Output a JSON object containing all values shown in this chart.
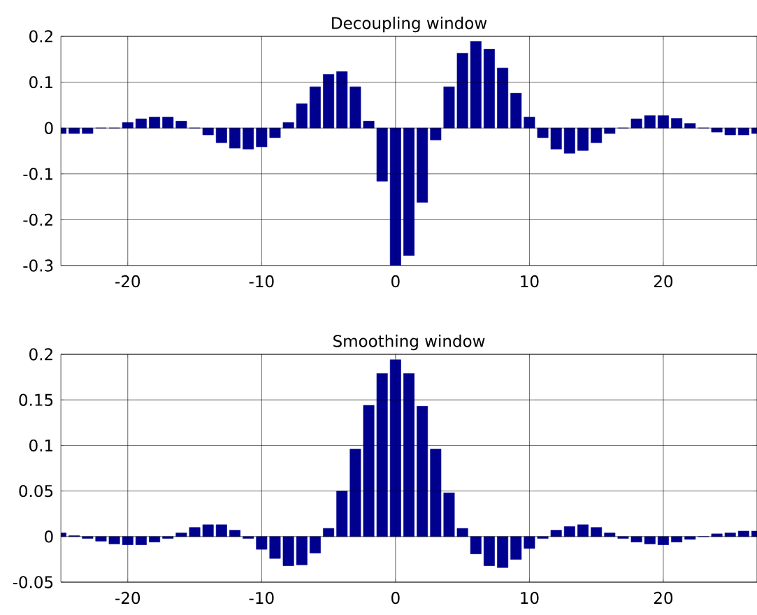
{
  "chart_data": [
    {
      "type": "bar",
      "title": "Decoupling window",
      "x": [
        -25,
        -24,
        -23,
        -22,
        -21,
        -20,
        -19,
        -18,
        -17,
        -16,
        -15,
        -14,
        -13,
        -12,
        -11,
        -10,
        -9,
        -8,
        -7,
        -6,
        -5,
        -4,
        -3,
        -2,
        -1,
        0,
        1,
        2,
        3,
        4,
        5,
        6,
        7,
        8,
        9,
        10,
        11,
        12,
        13,
        14,
        15,
        16,
        17,
        18,
        19,
        20,
        21,
        22,
        23,
        24,
        25,
        26,
        27
      ],
      "values": [
        -0.012,
        -0.012,
        -0.012,
        0,
        0,
        0.012,
        0.02,
        0.024,
        0.024,
        0.015,
        0,
        -0.015,
        -0.032,
        -0.044,
        -0.046,
        -0.041,
        -0.021,
        0.012,
        0.053,
        0.09,
        0.117,
        0.123,
        0.09,
        0.015,
        -0.116,
        -0.3,
        -0.278,
        -0.162,
        -0.026,
        0.09,
        0.163,
        0.189,
        0.172,
        0.131,
        0.076,
        0.024,
        -0.021,
        -0.046,
        -0.055,
        -0.049,
        -0.032,
        -0.012,
        0,
        0.02,
        0.027,
        0.027,
        0.021,
        0.01,
        0,
        -0.009,
        -0.015,
        -0.015,
        -0.012
      ],
      "color": "#00008f",
      "xlim": [
        -25,
        27
      ],
      "ylim": [
        -0.3,
        0.2
      ],
      "xticks": [
        -20,
        -10,
        0,
        10,
        20
      ],
      "yticks": [
        -0.3,
        -0.2,
        -0.1,
        0,
        0.1,
        0.2
      ],
      "grid": true
    },
    {
      "type": "bar",
      "title": "Smoothing window",
      "x": [
        -25,
        -24,
        -23,
        -22,
        -21,
        -20,
        -19,
        -18,
        -17,
        -16,
        -15,
        -14,
        -13,
        -12,
        -11,
        -10,
        -9,
        -8,
        -7,
        -6,
        -5,
        -4,
        -3,
        -2,
        -1,
        0,
        1,
        2,
        3,
        4,
        5,
        6,
        7,
        8,
        9,
        10,
        11,
        12,
        13,
        14,
        15,
        16,
        17,
        18,
        19,
        20,
        21,
        22,
        23,
        24,
        25,
        26,
        27
      ],
      "values": [
        0.004,
        0.001,
        -0.002,
        -0.005,
        -0.008,
        -0.009,
        -0.009,
        -0.006,
        -0.002,
        0.004,
        0.01,
        0.013,
        0.013,
        0.007,
        -0.002,
        -0.014,
        -0.024,
        -0.032,
        -0.031,
        -0.018,
        0.009,
        0.05,
        0.096,
        0.144,
        0.179,
        0.194,
        0.179,
        0.143,
        0.096,
        0.048,
        0.009,
        -0.019,
        -0.032,
        -0.034,
        -0.025,
        -0.013,
        -0.002,
        0.007,
        0.011,
        0.013,
        0.01,
        0.004,
        -0.002,
        -0.006,
        -0.008,
        -0.009,
        -0.006,
        -0.003,
        0,
        0.003,
        0.004,
        0.006,
        0.006
      ],
      "color": "#00008f",
      "xlim": [
        -25,
        27
      ],
      "ylim": [
        -0.05,
        0.2
      ],
      "xticks": [
        -20,
        -10,
        0,
        10,
        20
      ],
      "yticks": [
        -0.05,
        0,
        0.05,
        0.1,
        0.15,
        0.2
      ],
      "grid": true
    }
  ]
}
